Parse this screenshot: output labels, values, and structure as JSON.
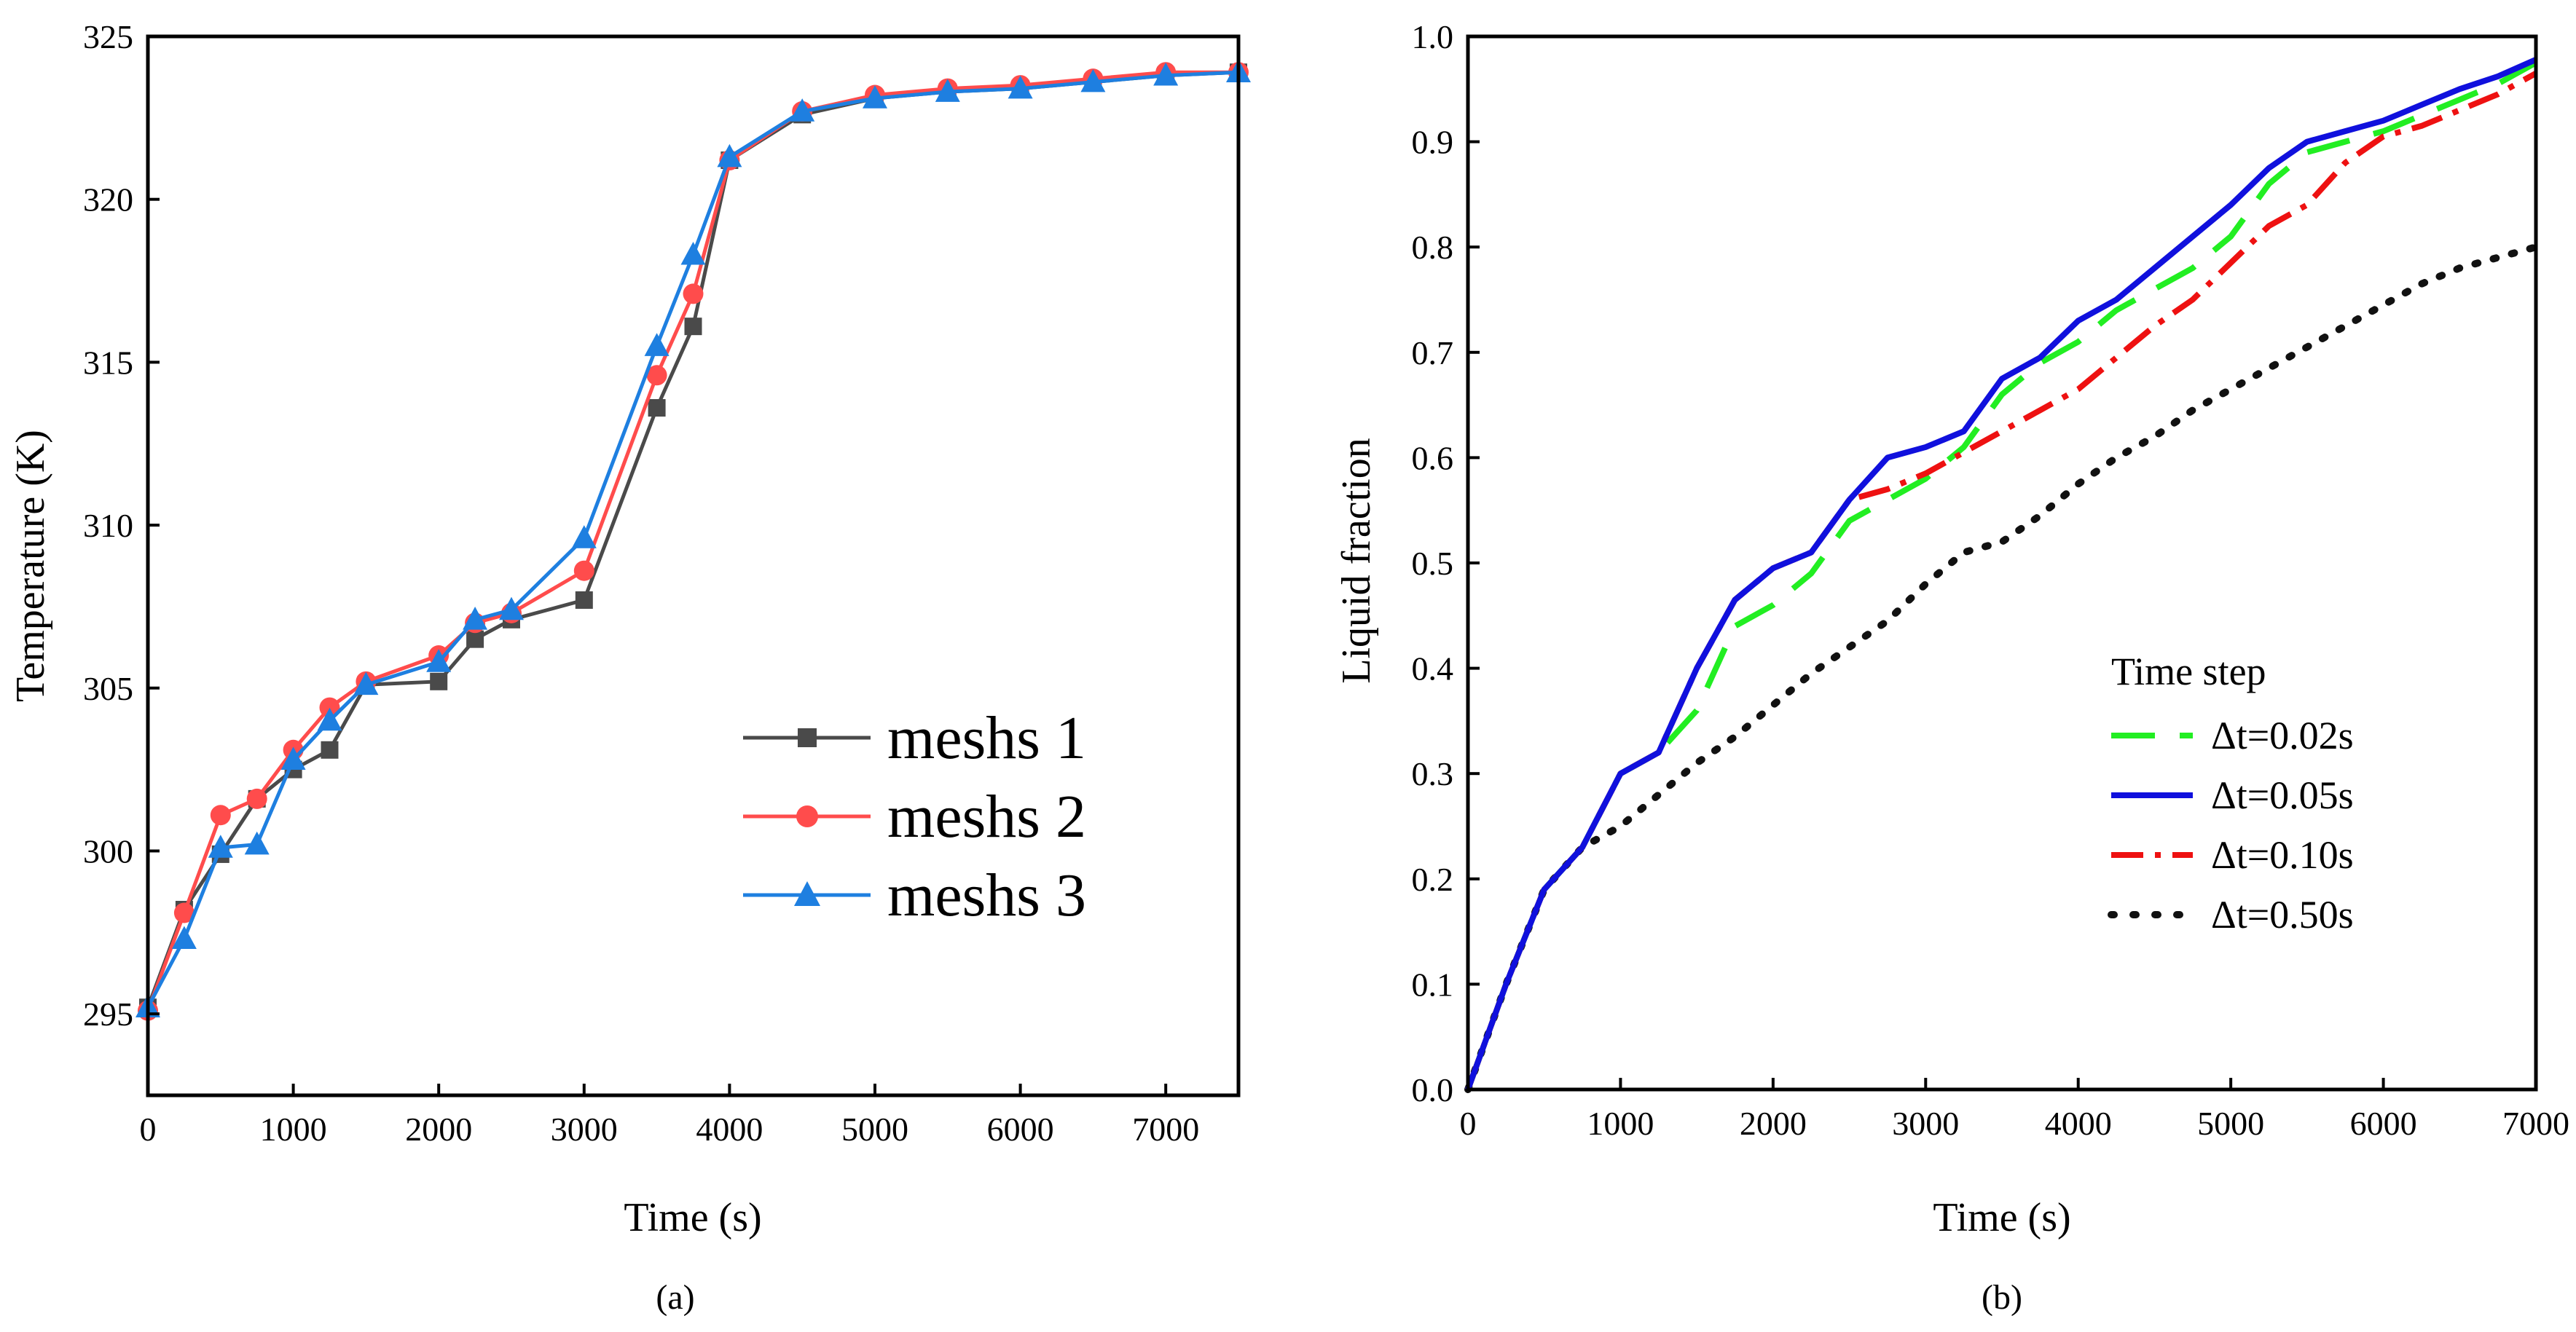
{
  "chart_data": [
    {
      "type": "line",
      "panel_label": "(a)",
      "xlabel": "Time (s)",
      "ylabel": "Temperature (K)",
      "xlim": [
        0,
        7500
      ],
      "ylim": [
        292.5,
        325
      ],
      "xticks": [
        0,
        1000,
        2000,
        3000,
        4000,
        5000,
        6000,
        7000
      ],
      "yticks": [
        295,
        300,
        305,
        310,
        315,
        320,
        325
      ],
      "grid": false,
      "legend_position": "bottom-right",
      "series": [
        {
          "name": "meshs 1",
          "color": "#4a4a4a",
          "marker": "square",
          "points": [
            [
              0,
              295.2
            ],
            [
              250,
              298.2
            ],
            [
              500,
              299.9
            ],
            [
              750,
              301.6
            ],
            [
              1000,
              302.5
            ],
            [
              1250,
              303.1
            ],
            [
              1500,
              305.1
            ],
            [
              2000,
              305.2
            ],
            [
              2250,
              306.5
            ],
            [
              2500,
              307.1
            ],
            [
              3000,
              307.7
            ],
            [
              3500,
              313.6
            ],
            [
              3750,
              316.1
            ],
            [
              4000,
              321.2
            ],
            [
              4500,
              322.6
            ],
            [
              5000,
              323.1
            ],
            [
              5500,
              323.3
            ],
            [
              6000,
              323.4
            ],
            [
              6500,
              323.6
            ],
            [
              7000,
              323.8
            ],
            [
              7500,
              323.9
            ]
          ]
        },
        {
          "name": "meshs 2",
          "color": "#ff4c4c",
          "marker": "circle",
          "points": [
            [
              0,
              295.1
            ],
            [
              250,
              298.1
            ],
            [
              500,
              301.1
            ],
            [
              750,
              301.6
            ],
            [
              1000,
              303.1
            ],
            [
              1250,
              304.4
            ],
            [
              1500,
              305.2
            ],
            [
              2000,
              306.0
            ],
            [
              2250,
              307.0
            ],
            [
              2500,
              307.3
            ],
            [
              3000,
              308.6
            ],
            [
              3500,
              314.6
            ],
            [
              3750,
              317.1
            ],
            [
              4000,
              321.2
            ],
            [
              4500,
              322.7
            ],
            [
              5000,
              323.2
            ],
            [
              5500,
              323.4
            ],
            [
              6000,
              323.5
            ],
            [
              6500,
              323.7
            ],
            [
              7000,
              323.9
            ],
            [
              7500,
              323.9
            ]
          ]
        },
        {
          "name": "meshs 3",
          "color": "#1e7fe0",
          "marker": "triangle",
          "points": [
            [
              0,
              295.2
            ],
            [
              250,
              297.3
            ],
            [
              500,
              300.1
            ],
            [
              750,
              300.2
            ],
            [
              1000,
              302.8
            ],
            [
              1250,
              304.0
            ],
            [
              1500,
              305.1
            ],
            [
              2000,
              305.8
            ],
            [
              2250,
              307.1
            ],
            [
              2500,
              307.4
            ],
            [
              3000,
              309.6
            ],
            [
              3500,
              315.5
            ],
            [
              3750,
              318.3
            ],
            [
              4000,
              321.3
            ],
            [
              4500,
              322.7
            ],
            [
              5000,
              323.1
            ],
            [
              5500,
              323.3
            ],
            [
              6000,
              323.4
            ],
            [
              6500,
              323.6
            ],
            [
              7000,
              323.8
            ],
            [
              7500,
              323.9
            ]
          ]
        }
      ]
    },
    {
      "type": "line",
      "panel_label": "(b)",
      "xlabel": "Time (s)",
      "ylabel": "Liquid fraction",
      "xlim": [
        0,
        7000
      ],
      "ylim": [
        0.0,
        1.0
      ],
      "xticks": [
        0,
        1000,
        2000,
        3000,
        4000,
        5000,
        6000,
        7000
      ],
      "yticks": [
        0.0,
        0.1,
        0.2,
        0.3,
        0.4,
        0.5,
        0.6,
        0.7,
        0.8,
        0.9,
        1.0
      ],
      "ytick_labels": [
        "0.0",
        "0.1",
        "0.2",
        "0.3",
        "0.4",
        "0.5",
        "0.6",
        "0.7",
        "0.8",
        "0.9",
        "1.0"
      ],
      "grid": false,
      "legend_title": "Time step",
      "legend_position": "center-right",
      "series": [
        {
          "name": "Δt=0.02s",
          "color": "#22ee22",
          "dash": "60,34",
          "width": 8,
          "points": [
            [
              0,
              0
            ],
            [
              250,
              0.1
            ],
            [
              500,
              0.19
            ],
            [
              750,
              0.23
            ],
            [
              1000,
              0.3
            ],
            [
              1250,
              0.32
            ],
            [
              1500,
              0.36
            ],
            [
              1750,
              0.44
            ],
            [
              2000,
              0.46
            ],
            [
              2250,
              0.49
            ],
            [
              2500,
              0.54
            ],
            [
              2750,
              0.56
            ],
            [
              3000,
              0.58
            ],
            [
              3250,
              0.61
            ],
            [
              3500,
              0.66
            ],
            [
              3750,
              0.69
            ],
            [
              4000,
              0.71
            ],
            [
              4250,
              0.74
            ],
            [
              4500,
              0.76
            ],
            [
              4750,
              0.78
            ],
            [
              5000,
              0.81
            ],
            [
              5250,
              0.86
            ],
            [
              5500,
              0.89
            ],
            [
              5750,
              0.9
            ],
            [
              6000,
              0.91
            ],
            [
              6250,
              0.925
            ],
            [
              6500,
              0.94
            ],
            [
              6750,
              0.955
            ],
            [
              7000,
              0.975
            ]
          ]
        },
        {
          "name": "Δt=0.05s",
          "color": "#1010dd",
          "dash": "",
          "width": 8,
          "points": [
            [
              0,
              0
            ],
            [
              250,
              0.1
            ],
            [
              500,
              0.19
            ],
            [
              750,
              0.23
            ],
            [
              1000,
              0.3
            ],
            [
              1250,
              0.32
            ],
            [
              1500,
              0.4
            ],
            [
              1750,
              0.465
            ],
            [
              2000,
              0.495
            ],
            [
              2250,
              0.51
            ],
            [
              2500,
              0.56
            ],
            [
              2750,
              0.6
            ],
            [
              3000,
              0.61
            ],
            [
              3250,
              0.625
            ],
            [
              3500,
              0.675
            ],
            [
              3750,
              0.695
            ],
            [
              4000,
              0.73
            ],
            [
              4250,
              0.75
            ],
            [
              4500,
              0.78
            ],
            [
              4750,
              0.81
            ],
            [
              5000,
              0.84
            ],
            [
              5250,
              0.875
            ],
            [
              5500,
              0.9
            ],
            [
              5750,
              0.91
            ],
            [
              6000,
              0.92
            ],
            [
              6250,
              0.935
            ],
            [
              6500,
              0.95
            ],
            [
              6750,
              0.962
            ],
            [
              7000,
              0.978
            ]
          ]
        },
        {
          "name": "Δt=0.10s",
          "color": "#ee1111",
          "dash": "44,16,8,16",
          "width": 8,
          "points": [
            [
              0,
              0
            ],
            [
              250,
              0.1
            ],
            [
              500,
              0.19
            ],
            [
              750,
              0.23
            ],
            [
              1000,
              0.3
            ],
            [
              1250,
              0.32
            ],
            [
              1500,
              0.4
            ],
            [
              1750,
              0.465
            ],
            [
              2000,
              0.495
            ],
            [
              2250,
              0.51
            ],
            [
              2500,
              0.56
            ],
            [
              2750,
              0.57
            ],
            [
              3000,
              0.585
            ],
            [
              3250,
              0.605
            ],
            [
              3500,
              0.625
            ],
            [
              3750,
              0.645
            ],
            [
              4000,
              0.665
            ],
            [
              4250,
              0.695
            ],
            [
              4500,
              0.725
            ],
            [
              4750,
              0.75
            ],
            [
              5000,
              0.785
            ],
            [
              5250,
              0.82
            ],
            [
              5500,
              0.84
            ],
            [
              5750,
              0.88
            ],
            [
              6000,
              0.905
            ],
            [
              6250,
              0.915
            ],
            [
              6500,
              0.93
            ],
            [
              6750,
              0.945
            ],
            [
              7000,
              0.965
            ]
          ]
        },
        {
          "name": "Δt=0.50s",
          "color": "#111111",
          "dash": "4,22",
          "width": 10,
          "points": [
            [
              0,
              0
            ],
            [
              250,
              0.1
            ],
            [
              500,
              0.19
            ],
            [
              750,
              0.23
            ],
            [
              1000,
              0.25
            ],
            [
              1250,
              0.28
            ],
            [
              1500,
              0.31
            ],
            [
              1750,
              0.335
            ],
            [
              2000,
              0.365
            ],
            [
              2250,
              0.395
            ],
            [
              2500,
              0.42
            ],
            [
              2750,
              0.445
            ],
            [
              3000,
              0.48
            ],
            [
              3250,
              0.51
            ],
            [
              3500,
              0.52
            ],
            [
              3750,
              0.545
            ],
            [
              4000,
              0.575
            ],
            [
              4250,
              0.6
            ],
            [
              4500,
              0.62
            ],
            [
              4750,
              0.645
            ],
            [
              5000,
              0.665
            ],
            [
              5250,
              0.685
            ],
            [
              5500,
              0.705
            ],
            [
              5750,
              0.725
            ],
            [
              6000,
              0.745
            ],
            [
              6250,
              0.765
            ],
            [
              6500,
              0.78
            ],
            [
              6750,
              0.79
            ],
            [
              7000,
              0.8
            ]
          ]
        }
      ]
    }
  ]
}
